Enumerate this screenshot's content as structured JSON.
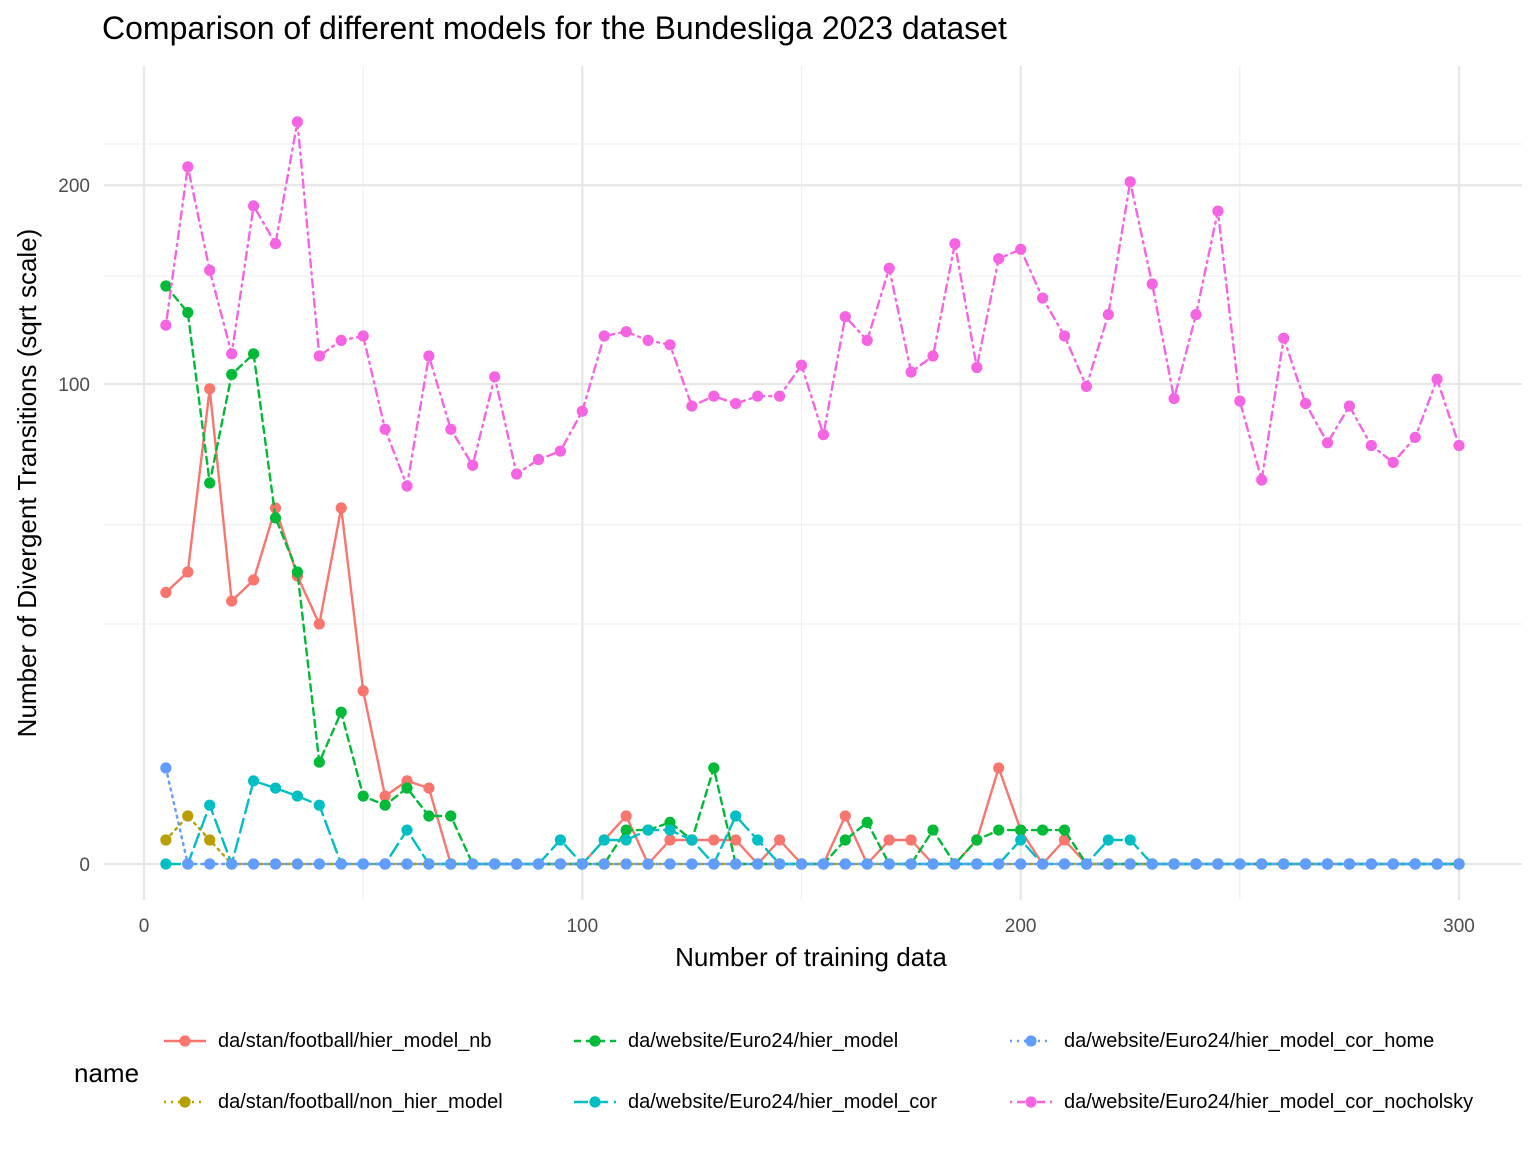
{
  "chart_data": {
    "type": "line",
    "title": "Comparison of different models for the Bundesliga 2023 dataset",
    "xlabel": "Number of training data",
    "ylabel": "Number of Divergent Transitions (sqrt scale)",
    "xlim": [
      -5,
      315
    ],
    "ylim": [
      0,
      240
    ],
    "y_scale": "sqrt",
    "x_ticks": [
      "0",
      "100",
      "200",
      "300"
    ],
    "y_ticks": [
      "0",
      "100",
      "200"
    ],
    "grid": true,
    "legend_title": "name",
    "legend_position": "bottom",
    "x": [
      5,
      10,
      15,
      20,
      25,
      30,
      35,
      40,
      45,
      50,
      55,
      60,
      65,
      70,
      75,
      80,
      85,
      90,
      95,
      100,
      105,
      110,
      115,
      120,
      125,
      130,
      135,
      140,
      145,
      150,
      155,
      160,
      165,
      170,
      175,
      180,
      185,
      190,
      195,
      200,
      205,
      210,
      215,
      220,
      225,
      230,
      235,
      240,
      245,
      250,
      255,
      260,
      265,
      270,
      275,
      280,
      285,
      290,
      295,
      300
    ],
    "series": [
      {
        "name": "da/stan/football/hier_model_nb",
        "color": "#F8766D",
        "dash": "solid",
        "values": [
          32,
          37,
          98,
          30,
          35,
          55,
          36,
          25,
          55,
          13,
          2,
          3,
          2.5,
          0,
          0,
          0,
          0,
          0,
          0,
          0,
          0.25,
          1,
          0,
          0.25,
          0.25,
          0.25,
          0.25,
          0,
          0.25,
          0,
          0,
          1,
          0,
          0.25,
          0.25,
          0,
          0,
          0.25,
          4,
          0.5,
          0,
          0.25,
          0,
          0,
          0,
          0,
          0,
          0,
          0,
          0,
          0,
          0,
          0,
          0,
          0,
          0,
          0,
          0,
          0,
          0
        ]
      },
      {
        "name": "da/stan/football/non_hier_model",
        "color": "#B79F00",
        "dash": "dotted",
        "values": [
          0.25,
          1,
          0.25,
          0,
          0,
          0,
          0,
          0,
          0,
          0,
          0,
          0,
          0,
          0,
          0,
          0,
          0,
          0,
          0,
          0,
          0,
          0,
          0,
          0,
          0,
          0,
          0,
          0,
          0,
          0,
          0,
          0,
          0,
          0,
          0,
          0,
          0,
          0,
          0,
          0,
          0,
          0,
          0,
          0,
          0,
          0,
          0,
          0,
          0,
          0,
          0,
          0,
          0,
          0,
          0,
          0,
          0,
          0,
          0,
          0
        ]
      },
      {
        "name": "da/website/Euro24/hier_model",
        "color": "#00BA38",
        "dash": "dashed",
        "values": [
          145,
          132,
          63,
          104,
          113,
          52,
          37,
          4.5,
          10,
          2,
          1.5,
          2.5,
          1,
          1,
          0,
          0,
          0,
          0,
          0,
          0,
          0,
          0.5,
          0.5,
          0.75,
          0.25,
          4,
          0,
          0,
          0,
          0,
          0,
          0.25,
          0.75,
          0,
          0,
          0.5,
          0,
          0.25,
          0.5,
          0.5,
          0.5,
          0.5,
          0,
          0,
          0,
          0,
          0,
          0,
          0,
          0,
          0,
          0,
          0,
          0,
          0,
          0,
          0,
          0,
          0,
          0
        ]
      },
      {
        "name": "da/website/Euro24/hier_model_cor",
        "color": "#00BFC4",
        "dash": "longdash",
        "values": [
          0,
          0,
          1.5,
          0,
          3,
          2.5,
          2,
          1.5,
          0,
          0,
          0,
          0.5,
          0,
          0,
          0,
          0,
          0,
          0,
          0.25,
          0,
          0.25,
          0.25,
          0.5,
          0.5,
          0.25,
          0,
          1,
          0.25,
          0,
          0,
          0,
          0,
          0,
          0,
          0,
          0,
          0,
          0,
          0,
          0.25,
          0,
          0,
          0,
          0.25,
          0.25,
          0,
          0,
          0,
          0,
          0,
          0,
          0,
          0,
          0,
          0,
          0,
          0,
          0,
          0,
          0
        ]
      },
      {
        "name": "da/website/Euro24/hier_model_cor_home",
        "color": "#619CFF",
        "dash": "dotted",
        "values": [
          4,
          0,
          0,
          0,
          0,
          0,
          0,
          0,
          0,
          0,
          0,
          0,
          0,
          0,
          0,
          0,
          0,
          0,
          0,
          0,
          0,
          0,
          0,
          0,
          0,
          0,
          0,
          0,
          0,
          0,
          0,
          0,
          0,
          0,
          0,
          0,
          0,
          0,
          0,
          0,
          0,
          0,
          0,
          0,
          0,
          0,
          0,
          0,
          0,
          0,
          0,
          0,
          0,
          0,
          0,
          0,
          0,
          0,
          0,
          0
        ]
      },
      {
        "name": "da/website/Euro24/hier_model_cor_nocholsky",
        "color": "#F564E3",
        "dash": "dotdash",
        "values": [
          126,
          211,
          153,
          113,
          188,
          167,
          239,
          112,
          119,
          121,
          82,
          62,
          112,
          82,
          69,
          103,
          66,
          71,
          74,
          89,
          121,
          123,
          119,
          117,
          91,
          95,
          92,
          95,
          95,
          108,
          80,
          130,
          119,
          154,
          105,
          112,
          167,
          107,
          159,
          164,
          139,
          121,
          99,
          131,
          202,
          146,
          94,
          131,
          185,
          93,
          64,
          120,
          92,
          77,
          91,
          76,
          70,
          79,
          102,
          76
        ]
      }
    ]
  }
}
